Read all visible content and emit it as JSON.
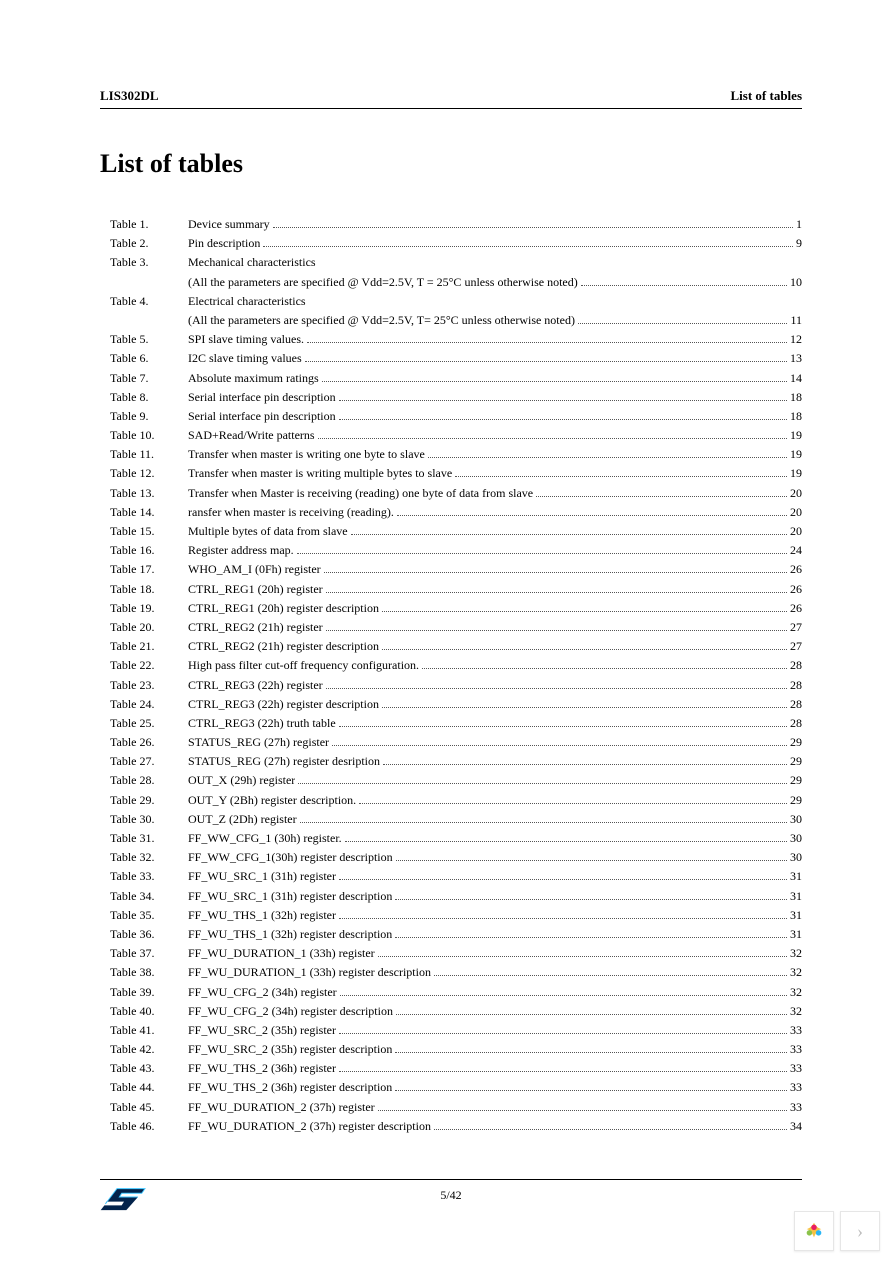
{
  "header": {
    "left": "LIS302DL",
    "right": "List of tables"
  },
  "title": "List of tables",
  "toc": [
    {
      "label": "Table 1.",
      "desc": "Device summary",
      "page": "1"
    },
    {
      "label": "Table 2.",
      "desc": "Pin description",
      "page": "9"
    },
    {
      "label": "Table 3.",
      "desc": "Mechanical characteristics",
      "sub": "(All the parameters are specified @ Vdd=2.5V, T = 25°C unless otherwise noted)",
      "page": "10"
    },
    {
      "label": "Table 4.",
      "desc": "Electrical characteristics",
      "sub": "(All the parameters are specified @ Vdd=2.5V, T= 25°C unless otherwise noted)",
      "page": "11"
    },
    {
      "label": "Table 5.",
      "desc": "SPI slave timing values.",
      "page": "12"
    },
    {
      "label": "Table 6.",
      "desc": "I2C slave timing values",
      "page": "13"
    },
    {
      "label": "Table 7.",
      "desc": "Absolute maximum ratings",
      "page": "14"
    },
    {
      "label": "Table 8.",
      "desc": "Serial interface pin description",
      "page": "18"
    },
    {
      "label": "Table 9.",
      "desc": "Serial interface pin description",
      "page": "18"
    },
    {
      "label": "Table 10.",
      "desc": "SAD+Read/Write patterns",
      "page": "19"
    },
    {
      "label": "Table 11.",
      "desc": "Transfer when master is writing one byte to slave",
      "page": "19"
    },
    {
      "label": "Table 12.",
      "desc": "Transfer when master is writing multiple bytes to slave",
      "page": "19"
    },
    {
      "label": "Table 13.",
      "desc": "Transfer when Master is receiving (reading) one byte of data from slave",
      "page": "20"
    },
    {
      "label": "Table 14.",
      "desc": "ransfer when master is receiving (reading).",
      "page": "20"
    },
    {
      "label": "Table 15.",
      "desc": "Multiple bytes of data from slave",
      "page": "20"
    },
    {
      "label": "Table 16.",
      "desc": "Register address map.",
      "page": "24"
    },
    {
      "label": "Table 17.",
      "desc": "WHO_AM_I (0Fh) register",
      "page": "26"
    },
    {
      "label": "Table 18.",
      "desc": "CTRL_REG1 (20h) register",
      "page": "26"
    },
    {
      "label": "Table 19.",
      "desc": "CTRL_REG1 (20h) register description",
      "page": "26"
    },
    {
      "label": "Table 20.",
      "desc": "CTRL_REG2 (21h) register",
      "page": "27"
    },
    {
      "label": "Table 21.",
      "desc": "CTRL_REG2 (21h) register description",
      "page": "27"
    },
    {
      "label": "Table 22.",
      "desc": "High pass filter cut-off frequency configuration.",
      "page": "28"
    },
    {
      "label": "Table 23.",
      "desc": "CTRL_REG3 (22h) register",
      "page": "28"
    },
    {
      "label": "Table 24.",
      "desc": "CTRL_REG3 (22h) register description",
      "page": "28"
    },
    {
      "label": "Table 25.",
      "desc": "CTRL_REG3 (22h) truth table",
      "page": "28"
    },
    {
      "label": "Table 26.",
      "desc": "STATUS_REG (27h) register",
      "page": "29"
    },
    {
      "label": "Table 27.",
      "desc": "STATUS_REG (27h) register desription",
      "page": "29"
    },
    {
      "label": "Table 28.",
      "desc": "OUT_X (29h) register",
      "page": "29"
    },
    {
      "label": "Table 29.",
      "desc": "OUT_Y (2Bh) register description.",
      "page": "29"
    },
    {
      "label": "Table 30.",
      "desc": "OUT_Z (2Dh) register",
      "page": "30"
    },
    {
      "label": "Table 31.",
      "desc": "FF_WW_CFG_1 (30h) register.",
      "page": "30"
    },
    {
      "label": "Table 32.",
      "desc": "FF_WW_CFG_1(30h) register description",
      "page": "30"
    },
    {
      "label": "Table 33.",
      "desc": "FF_WU_SRC_1 (31h) register",
      "page": "31"
    },
    {
      "label": "Table 34.",
      "desc": "FF_WU_SRC_1 (31h) register description",
      "page": "31"
    },
    {
      "label": "Table 35.",
      "desc": "FF_WU_THS_1 (32h) register",
      "page": "31"
    },
    {
      "label": "Table 36.",
      "desc": "FF_WU_THS_1 (32h) register description",
      "page": "31"
    },
    {
      "label": "Table 37.",
      "desc": "FF_WU_DURATION_1 (33h) register",
      "page": "32"
    },
    {
      "label": "Table 38.",
      "desc": "FF_WU_DURATION_1 (33h) register description",
      "page": "32"
    },
    {
      "label": "Table 39.",
      "desc": "FF_WU_CFG_2 (34h) register",
      "page": "32"
    },
    {
      "label": "Table 40.",
      "desc": "FF_WU_CFG_2 (34h) register description",
      "page": "32"
    },
    {
      "label": "Table 41.",
      "desc": "FF_WU_SRC_2 (35h) register",
      "page": "33"
    },
    {
      "label": "Table 42.",
      "desc": "FF_WU_SRC_2 (35h) register description",
      "page": "33"
    },
    {
      "label": "Table 43.",
      "desc": "FF_WU_THS_2 (36h) register",
      "page": "33"
    },
    {
      "label": "Table 44.",
      "desc": "FF_WU_THS_2 (36h) register description",
      "page": "33"
    },
    {
      "label": "Table 45.",
      "desc": "FF_WU_DURATION_2 (37h) register",
      "page": "33"
    },
    {
      "label": "Table 46.",
      "desc": "FF_WU_DURATION_2 (37h) register description",
      "page": "34"
    }
  ],
  "footer": {
    "page": "5/42"
  },
  "logo": {
    "name": "ST",
    "color_dark": "#03234b",
    "color_light": "#3ec6ff"
  },
  "corner": {
    "icon_colors": [
      "#f6c244",
      "#8bc34a",
      "#29b6f6",
      "#e91e63"
    ],
    "chevron": "›"
  }
}
